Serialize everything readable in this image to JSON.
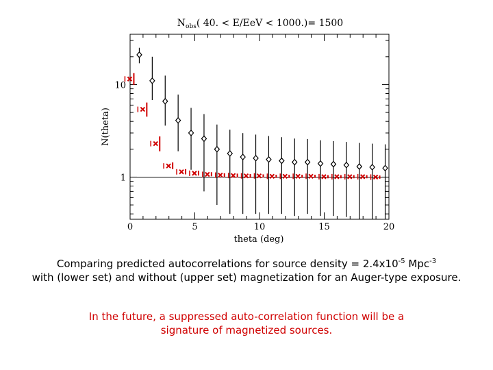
{
  "chart_data": {
    "type": "scatter",
    "title": "N",
    "title_sub": "obs",
    "title_rest": "( 40. < E/EeV < 1000.)= 1500",
    "xlabel": "theta (deg)",
    "ylabel": "N(theta)",
    "xlim": [
      0,
      20
    ],
    "ylim": [
      0.35,
      35
    ],
    "yscale": "log",
    "xticks": [
      "0",
      "5",
      "10",
      "15",
      "20"
    ],
    "yticks": [
      "1",
      "10"
    ],
    "reference_line": 1,
    "series": [
      {
        "marker": "diamond",
        "color": "#000000",
        "points": [
          [
            0.5,
            21,
            4.0,
            4.0
          ],
          [
            1.5,
            11.0,
            9.0,
            4.2
          ],
          [
            2.5,
            6.6,
            5.9,
            3.0
          ],
          [
            3.5,
            4.1,
            3.7,
            2.2
          ],
          [
            4.5,
            3.0,
            2.6,
            1.8
          ],
          [
            5.5,
            2.6,
            2.2,
            1.9
          ],
          [
            6.5,
            2.0,
            1.7,
            1.5
          ],
          [
            7.5,
            1.8,
            1.45,
            1.4
          ],
          [
            8.5,
            1.65,
            1.34,
            1.25
          ],
          [
            9.5,
            1.6,
            1.28,
            1.2
          ],
          [
            10.5,
            1.55,
            1.23,
            1.15
          ],
          [
            11.5,
            1.5,
            1.2,
            1.1
          ],
          [
            12.5,
            1.45,
            1.16,
            1.07
          ],
          [
            13.5,
            1.45,
            1.13,
            1.05
          ],
          [
            14.5,
            1.4,
            1.1,
            1.02
          ],
          [
            15.5,
            1.38,
            1.07,
            1.0
          ],
          [
            16.5,
            1.35,
            1.05,
            0.98
          ],
          [
            17.5,
            1.3,
            1.04,
            0.96
          ],
          [
            18.5,
            1.28,
            1.02,
            0.95
          ],
          [
            19.5,
            1.25,
            1.01,
            0.93
          ]
        ]
      },
      {
        "marker": "x",
        "color": "#d00000",
        "points": [
          [
            0.5,
            11.5,
            1.8,
            1.6
          ],
          [
            1.5,
            5.4,
            1.0,
            0.9
          ],
          [
            2.5,
            2.3,
            0.45,
            0.4
          ],
          [
            3.5,
            1.32,
            0.12,
            0.1
          ],
          [
            4.5,
            1.14,
            0.08,
            0.07
          ],
          [
            5.5,
            1.1,
            0.07,
            0.06
          ],
          [
            6.5,
            1.07,
            0.06,
            0.05
          ],
          [
            7.5,
            1.05,
            0.05,
            0.05
          ],
          [
            8.5,
            1.04,
            0.05,
            0.05
          ],
          [
            9.5,
            1.03,
            0.05,
            0.05
          ],
          [
            10.5,
            1.03,
            0.04,
            0.04
          ],
          [
            11.5,
            1.02,
            0.04,
            0.04
          ],
          [
            12.5,
            1.02,
            0.04,
            0.04
          ],
          [
            13.5,
            1.02,
            0.04,
            0.04
          ],
          [
            14.5,
            1.02,
            0.04,
            0.04
          ],
          [
            15.5,
            1.01,
            0.04,
            0.04
          ],
          [
            16.5,
            1.01,
            0.04,
            0.04
          ],
          [
            17.5,
            1.01,
            0.04,
            0.04
          ],
          [
            18.5,
            1.01,
            0.04,
            0.04
          ],
          [
            19.5,
            1.0,
            0.04,
            0.04
          ]
        ]
      }
    ]
  },
  "caption": {
    "line1_prefix": "Comparing predicted autocorrelations for source density = 2.4x10",
    "line1_exp1": "-5",
    "line1_mid": " Mpc",
    "line1_exp2": "-3",
    "line2": "with (lower set) and without (upper set) magnetization for an Auger-type exposure."
  },
  "note": {
    "line1": "In the future, a suppressed auto-correlation function will be a",
    "line2": "signature of magnetized sources."
  },
  "colors": {
    "upper": "#000000",
    "lower": "#d00000"
  }
}
